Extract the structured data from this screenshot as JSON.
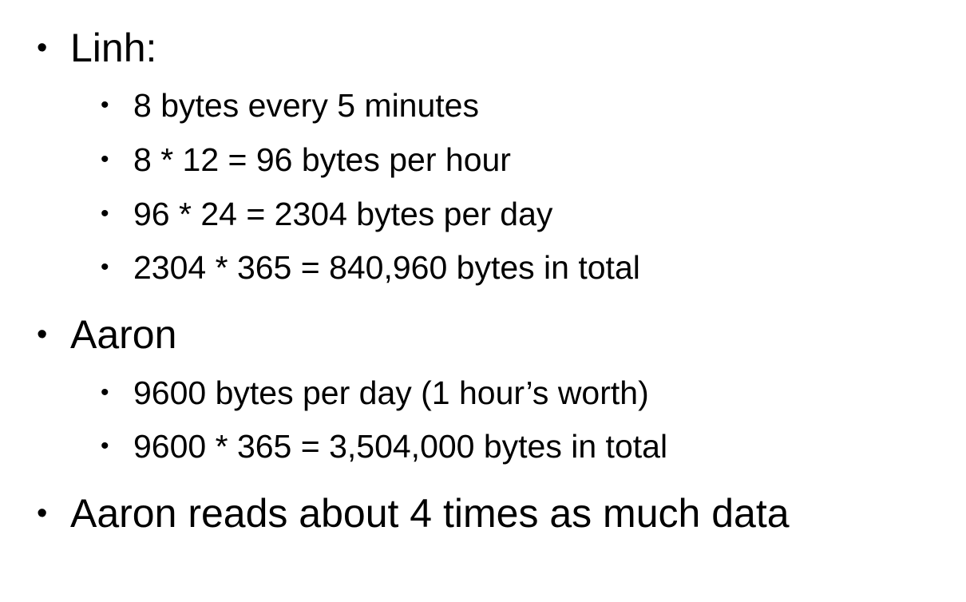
{
  "bullet_glyph": "•",
  "sections": [
    {
      "heading": "Linh:",
      "items": [
        "8 bytes every 5 minutes",
        "8 * 12 = 96 bytes per hour",
        "96 * 24 = 2304 bytes per day",
        "2304 * 365 = 840,960 bytes in total"
      ]
    },
    {
      "heading": "Aaron",
      "items": [
        "9600 bytes per day (1 hour’s worth)",
        "9600 * 365 = 3,504,000 bytes in total"
      ]
    },
    {
      "heading": "Aaron reads about 4 times as much data",
      "items": []
    }
  ]
}
